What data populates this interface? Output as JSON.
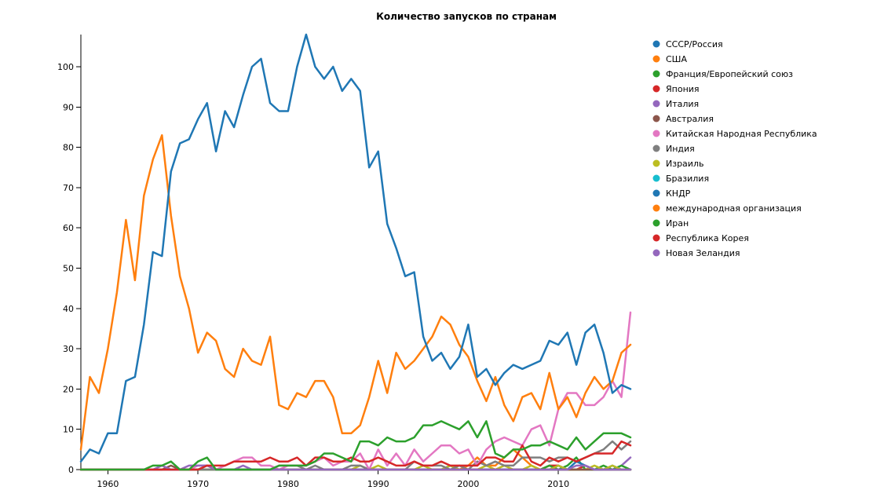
{
  "chart_data": {
    "type": "line",
    "title": "Количество запусков по странам",
    "xlabel": "",
    "ylabel": "",
    "xlim": [
      1957,
      2018
    ],
    "ylim": [
      0,
      108
    ],
    "x_ticks": [
      1960,
      1970,
      1980,
      1990,
      2000,
      2010
    ],
    "y_ticks": [
      0,
      10,
      20,
      30,
      40,
      50,
      60,
      70,
      80,
      90,
      100
    ],
    "grid": false,
    "legend_position": "right",
    "x": [
      1957,
      1958,
      1959,
      1960,
      1961,
      1962,
      1963,
      1964,
      1965,
      1966,
      1967,
      1968,
      1969,
      1970,
      1971,
      1972,
      1973,
      1974,
      1975,
      1976,
      1977,
      1978,
      1979,
      1980,
      1981,
      1982,
      1983,
      1984,
      1985,
      1986,
      1987,
      1988,
      1989,
      1990,
      1991,
      1992,
      1993,
      1994,
      1995,
      1996,
      1997,
      1998,
      1999,
      2000,
      2001,
      2002,
      2003,
      2004,
      2005,
      2006,
      2007,
      2008,
      2009,
      2010,
      2011,
      2012,
      2013,
      2014,
      2015,
      2016,
      2017,
      2018
    ],
    "series": [
      {
        "name": "СССР/Россия",
        "color": "#1f77b4",
        "values": [
          2,
          5,
          4,
          9,
          9,
          22,
          23,
          36,
          54,
          53,
          74,
          81,
          82,
          87,
          91,
          79,
          89,
          85,
          93,
          100,
          102,
          91,
          89,
          89,
          100,
          108,
          100,
          97,
          100,
          94,
          97,
          94,
          75,
          79,
          61,
          55,
          48,
          49,
          33,
          27,
          29,
          25,
          28,
          36,
          23,
          25,
          21,
          24,
          26,
          25,
          26,
          27,
          32,
          31,
          34,
          26,
          34,
          36,
          29,
          19,
          21,
          20
        ]
      },
      {
        "name": "США",
        "color": "#ff7f0e",
        "values": [
          5,
          23,
          19,
          30,
          44,
          62,
          47,
          68,
          77,
          83,
          63,
          48,
          40,
          29,
          34,
          32,
          25,
          23,
          30,
          27,
          26,
          33,
          16,
          15,
          19,
          18,
          22,
          22,
          18,
          9,
          9,
          11,
          18,
          27,
          19,
          29,
          25,
          27,
          30,
          33,
          38,
          36,
          31,
          28,
          22,
          17,
          23,
          16,
          12,
          18,
          19,
          15,
          24,
          15,
          18,
          13,
          19,
          23,
          20,
          22,
          29,
          31
        ]
      },
      {
        "name": "Франция/Европейский союз",
        "color": "#2ca02c",
        "values": [
          0,
          0,
          0,
          0,
          0,
          0,
          0,
          0,
          1,
          1,
          2,
          0,
          0,
          2,
          3,
          0,
          0,
          0,
          0,
          0,
          0,
          0,
          1,
          1,
          1,
          1,
          2,
          4,
          4,
          3,
          2,
          7,
          7,
          6,
          8,
          7,
          7,
          8,
          11,
          11,
          12,
          11,
          10,
          12,
          8,
          12,
          4,
          3,
          5,
          5,
          6,
          6,
          7,
          6,
          5,
          8,
          5,
          7,
          9,
          9,
          9,
          8
        ]
      },
      {
        "name": "Япония",
        "color": "#d62728",
        "values": [
          0,
          0,
          0,
          0,
          0,
          0,
          0,
          0,
          0,
          0,
          0,
          0,
          0,
          0,
          1,
          1,
          1,
          2,
          2,
          2,
          2,
          3,
          2,
          2,
          3,
          1,
          3,
          3,
          2,
          2,
          3,
          2,
          2,
          3,
          2,
          1,
          1,
          2,
          1,
          1,
          2,
          1,
          1,
          1,
          1,
          3,
          3,
          2,
          2,
          6,
          2,
          1,
          3,
          2,
          3,
          2,
          3,
          4,
          4,
          4,
          7,
          6
        ]
      },
      {
        "name": "Италия",
        "color": "#9467bd",
        "values": [
          0,
          0,
          0,
          0,
          0,
          0,
          0,
          0,
          0,
          1,
          0,
          0,
          1,
          1,
          1,
          0,
          0,
          0,
          1,
          0,
          0,
          0,
          0,
          0,
          0,
          0,
          0,
          0,
          0,
          0,
          0,
          0,
          0,
          0,
          0,
          0,
          0,
          0,
          0,
          0,
          0,
          0,
          0,
          0,
          0,
          0,
          0,
          0,
          0,
          0,
          0,
          0,
          0,
          0,
          0,
          1,
          1,
          0,
          0,
          0,
          0,
          0
        ]
      },
      {
        "name": "Австралия",
        "color": "#8c564b",
        "values": [
          0,
          0,
          0,
          0,
          0,
          0,
          0,
          0,
          0,
          0,
          1,
          0,
          0,
          0,
          1,
          0,
          0,
          0,
          0,
          0,
          0,
          0,
          0,
          0,
          0,
          0,
          0,
          0,
          0,
          0,
          0,
          0,
          0,
          0,
          0,
          0,
          0,
          0,
          0,
          0,
          0,
          0,
          0,
          0,
          0,
          0,
          0,
          0,
          0,
          0,
          0,
          0,
          0,
          0,
          0,
          0,
          0,
          0,
          0,
          0,
          0,
          0
        ]
      },
      {
        "name": "Китайская Народная Республика",
        "color": "#e377c2",
        "values": [
          0,
          0,
          0,
          0,
          0,
          0,
          0,
          0,
          0,
          0,
          0,
          0,
          0,
          1,
          1,
          0,
          1,
          2,
          3,
          3,
          1,
          1,
          0,
          1,
          1,
          1,
          2,
          3,
          1,
          2,
          2,
          4,
          0,
          5,
          1,
          4,
          1,
          5,
          2,
          4,
          6,
          6,
          4,
          5,
          1,
          5,
          7,
          8,
          7,
          6,
          10,
          11,
          6,
          15,
          19,
          19,
          16,
          16,
          18,
          22,
          18,
          39
        ]
      },
      {
        "name": "Индия",
        "color": "#7f7f7f",
        "values": [
          0,
          0,
          0,
          0,
          0,
          0,
          0,
          0,
          0,
          0,
          0,
          0,
          0,
          0,
          0,
          0,
          0,
          0,
          0,
          0,
          0,
          0,
          1,
          1,
          1,
          0,
          1,
          0,
          0,
          0,
          1,
          1,
          0,
          0,
          0,
          0,
          0,
          2,
          1,
          1,
          1,
          0,
          1,
          0,
          2,
          1,
          2,
          1,
          1,
          3,
          3,
          3,
          2,
          3,
          3,
          2,
          3,
          4,
          5,
          7,
          5,
          7
        ]
      },
      {
        "name": "Израиль",
        "color": "#bcbd22",
        "values": [
          0,
          0,
          0,
          0,
          0,
          0,
          0,
          0,
          0,
          0,
          0,
          0,
          0,
          0,
          0,
          0,
          0,
          0,
          0,
          0,
          0,
          0,
          0,
          0,
          0,
          0,
          0,
          0,
          0,
          0,
          0,
          1,
          0,
          1,
          0,
          0,
          0,
          0,
          1,
          0,
          0,
          1,
          0,
          0,
          0,
          1,
          0,
          1,
          0,
          0,
          1,
          0,
          0,
          1,
          0,
          0,
          0,
          1,
          0,
          1,
          0,
          0
        ]
      },
      {
        "name": "Бразилия",
        "color": "#17becf",
        "values": [
          0,
          0,
          0,
          0,
          0,
          0,
          0,
          0,
          0,
          0,
          0,
          0,
          0,
          0,
          0,
          0,
          0,
          0,
          0,
          0,
          0,
          0,
          0,
          0,
          0,
          0,
          0,
          0,
          0,
          0,
          0,
          0,
          0,
          0,
          0,
          0,
          0,
          0,
          0,
          0,
          0,
          1,
          0,
          0,
          0,
          0,
          0,
          0,
          0,
          0,
          0,
          0,
          0,
          0,
          0,
          0,
          0,
          0,
          0,
          0,
          0,
          0
        ]
      },
      {
        "name": "КНДР",
        "color": "#1f77b4",
        "values": [
          0,
          0,
          0,
          0,
          0,
          0,
          0,
          0,
          0,
          0,
          0,
          0,
          0,
          0,
          0,
          0,
          0,
          0,
          0,
          0,
          0,
          0,
          0,
          0,
          0,
          0,
          0,
          0,
          0,
          0,
          0,
          0,
          0,
          0,
          0,
          0,
          0,
          0,
          0,
          0,
          0,
          1,
          0,
          0,
          0,
          0,
          0,
          0,
          0,
          0,
          0,
          0,
          0,
          1,
          0,
          2,
          1,
          0,
          0,
          1,
          0,
          0
        ]
      },
      {
        "name": "международная организация",
        "color": "#ff7f0e",
        "values": [
          0,
          0,
          0,
          0,
          0,
          0,
          0,
          0,
          0,
          0,
          0,
          0,
          0,
          0,
          0,
          0,
          0,
          0,
          0,
          0,
          0,
          0,
          0,
          0,
          0,
          0,
          0,
          0,
          0,
          0,
          0,
          0,
          0,
          0,
          0,
          0,
          0,
          0,
          0,
          0,
          0,
          0,
          0,
          1,
          3,
          1,
          1,
          3,
          5,
          3,
          1,
          0,
          0,
          0,
          0,
          0,
          0,
          0,
          0,
          0,
          0,
          0
        ]
      },
      {
        "name": "Иран",
        "color": "#2ca02c",
        "values": [
          0,
          0,
          0,
          0,
          0,
          0,
          0,
          0,
          0,
          0,
          0,
          0,
          0,
          0,
          0,
          0,
          0,
          0,
          0,
          0,
          0,
          0,
          0,
          0,
          0,
          0,
          0,
          0,
          0,
          0,
          0,
          0,
          0,
          0,
          0,
          0,
          0,
          0,
          0,
          0,
          0,
          0,
          0,
          0,
          0,
          0,
          0,
          0,
          0,
          0,
          0,
          0,
          1,
          0,
          1,
          3,
          0,
          0,
          1,
          0,
          1,
          0
        ]
      },
      {
        "name": "Республика Корея",
        "color": "#d62728",
        "values": [
          0,
          0,
          0,
          0,
          0,
          0,
          0,
          0,
          0,
          0,
          0,
          0,
          0,
          0,
          0,
          0,
          0,
          0,
          0,
          0,
          0,
          0,
          0,
          0,
          0,
          0,
          0,
          0,
          0,
          0,
          0,
          0,
          0,
          0,
          0,
          0,
          0,
          0,
          0,
          0,
          0,
          0,
          0,
          0,
          0,
          0,
          0,
          0,
          0,
          0,
          0,
          0,
          1,
          1,
          0,
          0,
          1,
          0,
          0,
          0,
          0,
          0
        ]
      },
      {
        "name": "Новая Зеландия",
        "color": "#9467bd",
        "values": [
          0,
          0,
          0,
          0,
          0,
          0,
          0,
          0,
          0,
          0,
          0,
          0,
          0,
          0,
          0,
          0,
          0,
          0,
          0,
          0,
          0,
          0,
          0,
          0,
          0,
          0,
          0,
          0,
          0,
          0,
          0,
          0,
          0,
          0,
          0,
          0,
          0,
          0,
          0,
          0,
          0,
          0,
          0,
          0,
          0,
          0,
          0,
          0,
          0,
          0,
          0,
          0,
          0,
          0,
          0,
          0,
          0,
          0,
          0,
          0,
          1,
          3
        ]
      }
    ]
  }
}
